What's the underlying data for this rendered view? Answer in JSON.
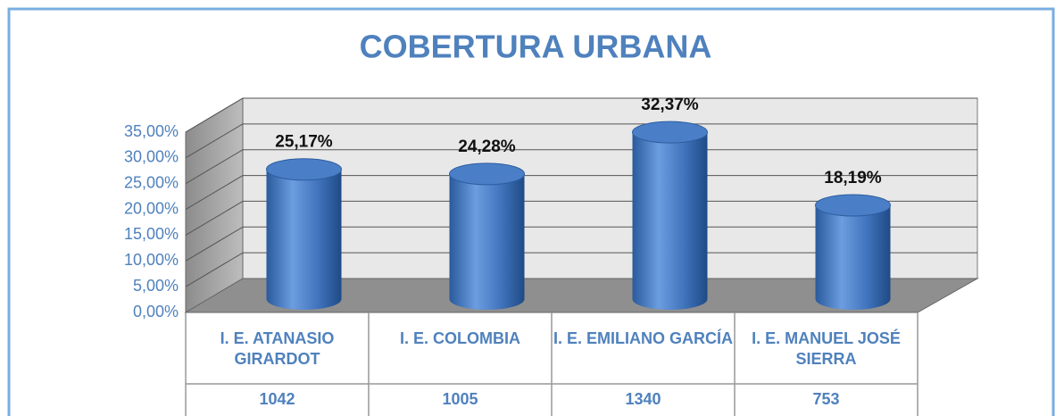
{
  "chart_data": {
    "type": "bar3d",
    "title": "COBERTURA URBANA",
    "categories": [
      "I. E. ATANASIO GIRARDOT",
      "I. E. COLOMBIA",
      "I. E. EMILIANO GARCÍA",
      "I. E. MANUEL JOSÉ SIERRA"
    ],
    "values": [
      25.17,
      24.28,
      32.37,
      18.19
    ],
    "value_labels": [
      "25,17%",
      "24,28%",
      "32,37%",
      "18,19%"
    ],
    "table_values": [
      1042,
      1005,
      1340,
      753
    ],
    "color": "#4a7ec4",
    "ylim": [
      0,
      35
    ],
    "yticks": [
      {
        "value": 0,
        "label": "0,00%"
      },
      {
        "value": 5,
        "label": "5,00%"
      },
      {
        "value": 10,
        "label": "10,00%"
      },
      {
        "value": 15,
        "label": "15,00%"
      },
      {
        "value": 20,
        "label": "20,00%"
      },
      {
        "value": 25,
        "label": "25,00%"
      },
      {
        "value": 30,
        "label": "30,00%"
      },
      {
        "value": 35,
        "label": "35,00%"
      }
    ],
    "grid": true
  }
}
